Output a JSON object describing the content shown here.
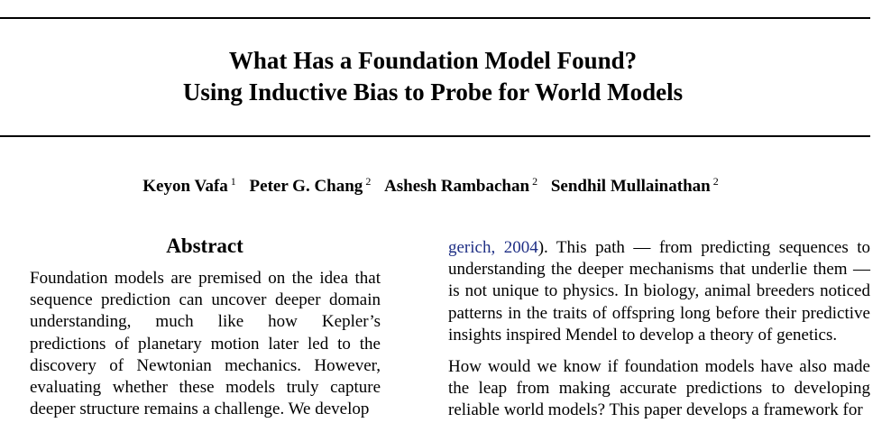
{
  "paper": {
    "title_line1": "What Has a Foundation Model Found?",
    "title_line2": "Using Inductive Bias to Probe for World Models",
    "authors": [
      {
        "name": "Keyon Vafa",
        "affil": "1"
      },
      {
        "name": "Peter G. Chang",
        "affil": "2"
      },
      {
        "name": "Ashesh Rambachan",
        "affil": "2"
      },
      {
        "name": "Sendhil Mullainathan",
        "affil": "2"
      }
    ],
    "abstract_heading": "Abstract",
    "abstract_text": "Foundation models are premised on the idea that sequence prediction can uncover deeper domain understanding, much like how Kepler’s predictions of planetary motion later led to the discovery of Newtonian mechanics.  However, evaluating whether these models truly capture deeper structure remains a challenge. We develop",
    "body": {
      "p1_cite_name": "gerich",
      "p1_cite_sep": ", ",
      "p1_cite_year": "2004",
      "p1_text": ").  This path — from predicting sequences to understanding the deeper mechanisms that underlie them — is not unique to physics. In biology, animal breeders noticed patterns in the traits of offspring long before their predictive insights inspired Mendel to develop a theory of genetics.",
      "p2_text": "How would we know if foundation models have also made the leap from making accurate predictions to developing reliable world models? This paper develops a framework for"
    }
  }
}
